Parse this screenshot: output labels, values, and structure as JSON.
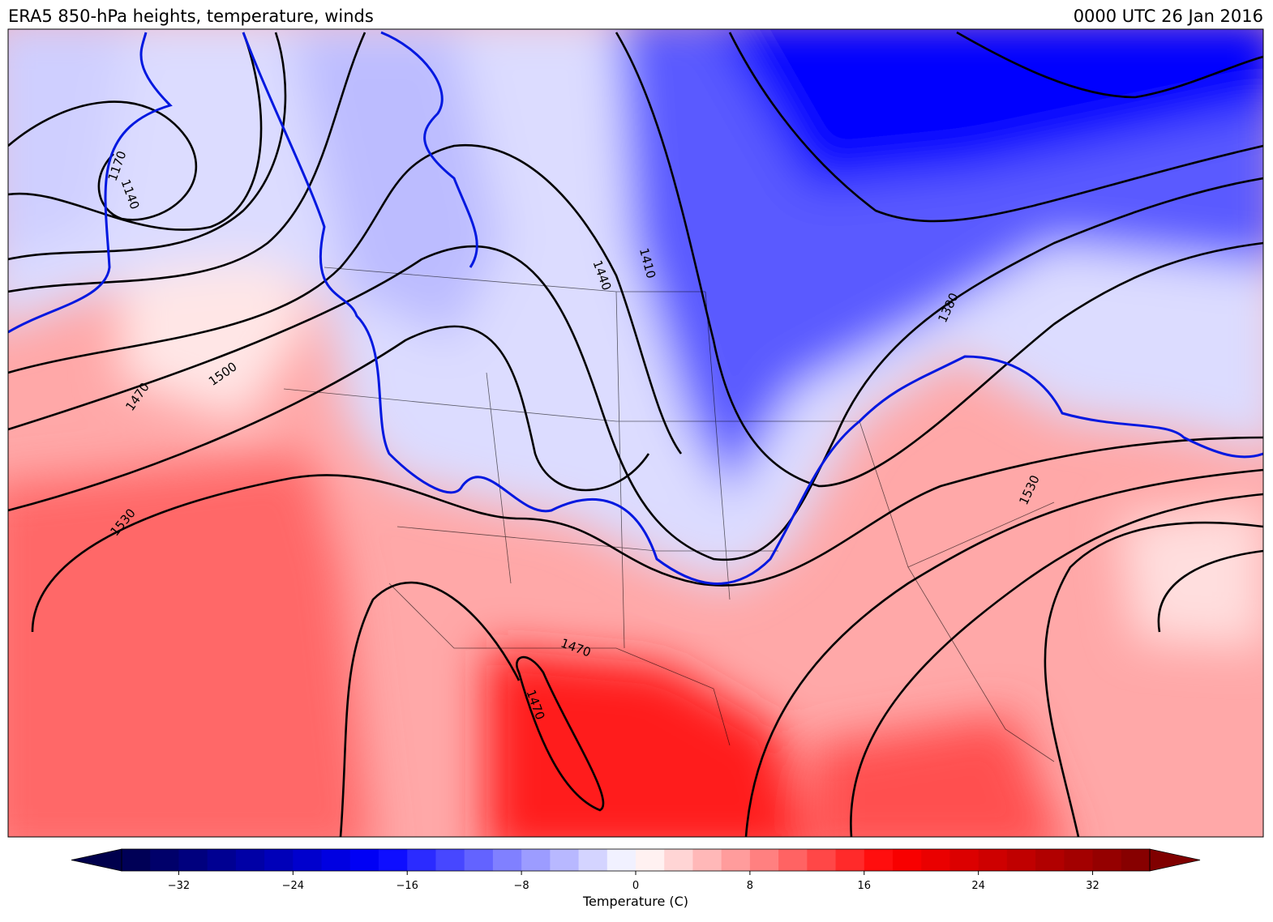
{
  "header": {
    "title": "ERA5 850-hPa heights, temperature, winds",
    "valid_time": "0000 UTC 26 Jan 2016"
  },
  "map": {
    "contour_labels": [
      "1170",
      "1140",
      "1470",
      "1500",
      "1530",
      "1440",
      "1410",
      "1380",
      "1530",
      "1470",
      "1470"
    ]
  },
  "colorbar": {
    "label": "Temperature (C)",
    "lim": [
      -36,
      36
    ],
    "levels_step": 2,
    "extend": "both",
    "colormap": [
      "#00004c",
      "#0000ff",
      "#ffffff",
      "#ff0000",
      "#800000"
    ],
    "ticks": [
      {
        "value": -32,
        "label": "−32"
      },
      {
        "value": -24,
        "label": "−24"
      },
      {
        "value": -16,
        "label": "−16"
      },
      {
        "value": -8,
        "label": "−8"
      },
      0,
      8,
      16,
      24,
      32
    ]
  }
}
